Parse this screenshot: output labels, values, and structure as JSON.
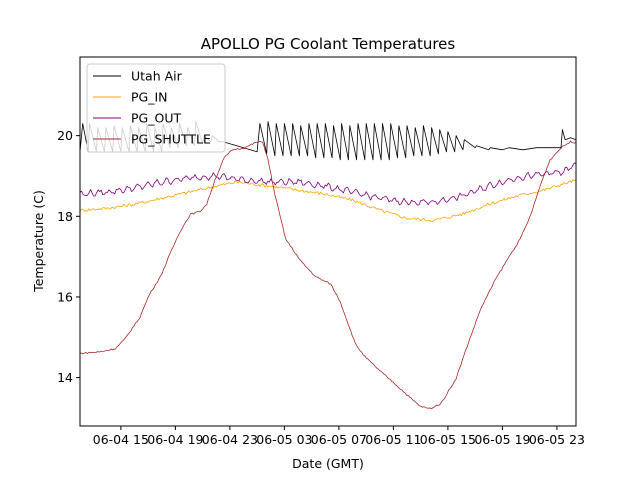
{
  "chart_data": {
    "type": "line",
    "title": "APOLLO PG Coolant Temperatures",
    "xlabel": "Date (GMT)",
    "ylabel": "Temperature (C)",
    "x_units": "hours since 06-04 00:00 GMT",
    "xlim": [
      12.0,
      48.4
    ],
    "ylim": [
      12.8,
      21.95
    ],
    "grid": false,
    "legend_position": "upper-left",
    "x_ticks": [
      {
        "value": 15,
        "label": "06-04 15"
      },
      {
        "value": 19,
        "label": "06-04 19"
      },
      {
        "value": 23,
        "label": "06-04 23"
      },
      {
        "value": 27,
        "label": "06-05 03"
      },
      {
        "value": 31,
        "label": "06-05 07"
      },
      {
        "value": 35,
        "label": "06-05 11"
      },
      {
        "value": 39,
        "label": "06-05 15"
      },
      {
        "value": 43,
        "label": "06-05 19"
      },
      {
        "value": 47,
        "label": "06-05 23"
      }
    ],
    "y_ticks": [
      {
        "value": 14,
        "label": "14"
      },
      {
        "value": 16,
        "label": "16"
      },
      {
        "value": 18,
        "label": "18"
      },
      {
        "value": 20,
        "label": "20"
      }
    ],
    "series": [
      {
        "name": "Utah Air",
        "color": "#000000",
        "x": [
          12.0,
          12.2,
          12.6,
          12.7,
          13.2,
          13.3,
          13.8,
          13.9,
          14.4,
          14.5,
          15.0,
          15.1,
          15.6,
          15.7,
          16.2,
          16.3,
          16.8,
          16.9,
          17.4,
          17.5,
          18.0,
          18.1,
          18.6,
          18.7,
          19.2,
          19.3,
          19.8,
          19.9,
          20.4,
          20.5,
          21.0,
          21.1,
          21.6,
          21.7,
          22.2,
          22.5,
          23.0,
          23.5,
          24.0,
          24.5,
          25.0,
          25.2,
          25.7,
          25.8,
          26.3,
          26.4,
          26.9,
          27.0,
          27.5,
          27.6,
          28.1,
          28.2,
          28.7,
          28.8,
          29.3,
          29.4,
          29.9,
          30.0,
          30.5,
          30.6,
          31.1,
          31.2,
          31.7,
          31.8,
          32.3,
          32.4,
          32.9,
          33.0,
          33.5,
          33.6,
          34.1,
          34.2,
          34.7,
          34.8,
          35.3,
          35.4,
          35.9,
          36.0,
          36.5,
          36.6,
          37.1,
          37.2,
          37.7,
          37.8,
          38.3,
          38.4,
          38.9,
          39.0,
          39.5,
          39.6,
          40.1,
          40.2,
          41.0,
          41.1,
          42.0,
          42.1,
          43.0,
          43.5,
          44.5,
          45.5,
          46.5,
          47.3,
          47.4,
          47.6,
          48.0,
          48.4
        ],
        "y": [
          19.6,
          20.3,
          19.6,
          20.3,
          19.6,
          20.2,
          19.6,
          20.2,
          19.6,
          20.25,
          19.6,
          20.2,
          19.6,
          20.25,
          19.6,
          20.2,
          19.6,
          20.3,
          19.6,
          20.2,
          19.6,
          20.3,
          19.7,
          20.2,
          19.7,
          20.3,
          19.75,
          20.2,
          19.75,
          20.35,
          19.8,
          20.0,
          19.85,
          20.0,
          19.85,
          19.85,
          19.8,
          19.75,
          19.7,
          19.65,
          19.6,
          20.3,
          19.55,
          20.35,
          19.5,
          20.3,
          19.5,
          20.3,
          19.5,
          20.3,
          19.5,
          20.25,
          19.5,
          20.3,
          19.45,
          20.3,
          19.45,
          20.3,
          19.45,
          20.25,
          19.4,
          20.3,
          19.4,
          20.25,
          19.4,
          20.3,
          19.4,
          20.3,
          19.4,
          20.3,
          19.4,
          20.3,
          19.4,
          20.3,
          19.45,
          20.25,
          19.45,
          20.25,
          19.5,
          20.2,
          19.5,
          20.25,
          19.5,
          20.2,
          19.55,
          20.15,
          19.6,
          20.1,
          19.6,
          20.0,
          19.65,
          19.9,
          19.7,
          19.75,
          19.65,
          19.7,
          19.65,
          19.7,
          19.65,
          19.7,
          19.7,
          19.7,
          20.15,
          19.9,
          19.95,
          19.9
        ]
      },
      {
        "name": "PG_IN",
        "color": "#ffa500",
        "x": [
          12,
          14,
          16,
          18,
          20,
          22,
          23.5,
          26,
          28,
          30,
          32,
          34,
          36,
          38,
          40,
          42,
          44,
          46,
          48.4
        ],
        "y": [
          18.15,
          18.2,
          18.3,
          18.45,
          18.6,
          18.75,
          18.85,
          18.75,
          18.65,
          18.55,
          18.4,
          18.15,
          17.95,
          17.9,
          18.05,
          18.3,
          18.5,
          18.65,
          18.9
        ]
      },
      {
        "name": "PG_OUT",
        "color": "#800080",
        "x": [
          12,
          14,
          16,
          18,
          20,
          22,
          24,
          26,
          28,
          30,
          32,
          34,
          36,
          38,
          40,
          42,
          44,
          46,
          47.5,
          48.4
        ],
        "y": [
          18.55,
          18.6,
          18.7,
          18.85,
          18.95,
          19.0,
          18.9,
          18.85,
          18.85,
          18.75,
          18.6,
          18.45,
          18.35,
          18.35,
          18.5,
          18.75,
          18.95,
          19.05,
          19.1,
          19.3
        ]
      },
      {
        "name": "PG_SHUTTLE",
        "color": "#a52a2a",
        "x": [
          12.0,
          13.5,
          14.6,
          15.3,
          16.4,
          17.1,
          17.9,
          18.6,
          19.3,
          20.1,
          20.8,
          21.3,
          21.9,
          22.6,
          23.2,
          24.1,
          24.9,
          25.4,
          25.8,
          26.3,
          27.1,
          28.2,
          29.3,
          30.4,
          31.1,
          32.2,
          32.9,
          34.0,
          35.1,
          36.3,
          37.0,
          37.7,
          38.5,
          39.6,
          40.3,
          41.4,
          42.5,
          43.6,
          44.3,
          45.1,
          45.8,
          46.5,
          47.3,
          48.0,
          48.4
        ],
        "y": [
          14.6,
          14.64,
          14.72,
          14.96,
          15.5,
          16.07,
          16.5,
          17.06,
          17.6,
          18.05,
          18.12,
          18.3,
          18.9,
          19.46,
          19.65,
          19.7,
          19.83,
          19.85,
          19.4,
          18.54,
          17.43,
          16.89,
          16.5,
          16.32,
          15.88,
          14.84,
          14.52,
          14.17,
          13.85,
          13.48,
          13.28,
          13.23,
          13.36,
          13.98,
          14.67,
          15.7,
          16.44,
          17.06,
          17.43,
          18.05,
          18.79,
          19.4,
          19.7,
          19.85,
          19.83
        ]
      }
    ]
  }
}
